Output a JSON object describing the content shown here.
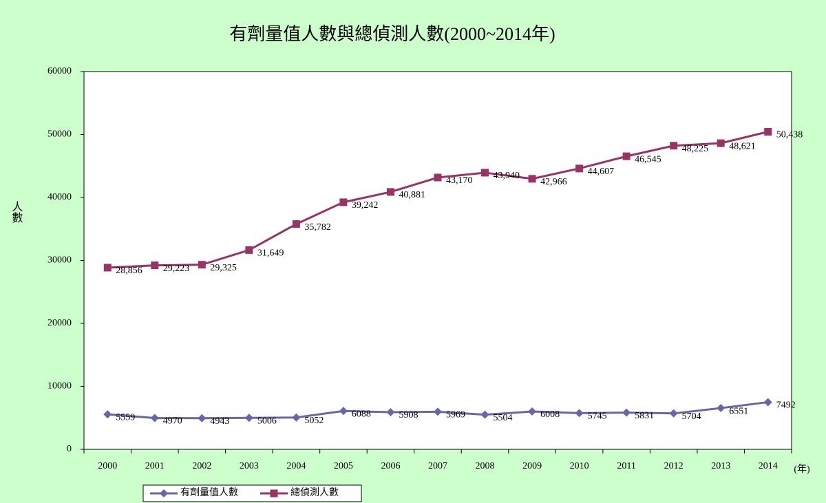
{
  "chart_data": {
    "type": "line",
    "title": "有劑量值人數與總偵測人數(2000~2014年)",
    "ylabel": "人數",
    "xlabel": "(年)",
    "categories": [
      "2000",
      "2001",
      "2002",
      "2003",
      "2004",
      "2005",
      "2006",
      "2007",
      "2008",
      "2009",
      "2010",
      "2011",
      "2012",
      "2013",
      "2014"
    ],
    "series": [
      {
        "name": "有劑量值人數",
        "color": "#6666aa",
        "marker": "diamond",
        "values": [
          5559,
          4970,
          4943,
          5006,
          5052,
          6088,
          5908,
          5969,
          5504,
          6008,
          5745,
          5831,
          5704,
          6551,
          7492
        ]
      },
      {
        "name": "總偵測人數",
        "color": "#993366",
        "marker": "square",
        "values": [
          28856,
          29223,
          29325,
          31649,
          35782,
          39242,
          40881,
          43170,
          43940,
          42966,
          44607,
          46545,
          48225,
          48621,
          50438
        ],
        "value_labels": [
          "28,856",
          "29,223",
          "29,325",
          "31,649",
          "35,782",
          "39,242",
          "40,881",
          "43,170",
          "43,940",
          "42,966",
          "44,607",
          "46,545",
          "48,225",
          "48,621",
          "50,438"
        ]
      }
    ],
    "ylim": [
      0,
      60000
    ],
    "yticks": [
      0,
      10000,
      20000,
      30000,
      40000,
      50000,
      60000
    ],
    "grid": false,
    "legend": "bottom"
  }
}
